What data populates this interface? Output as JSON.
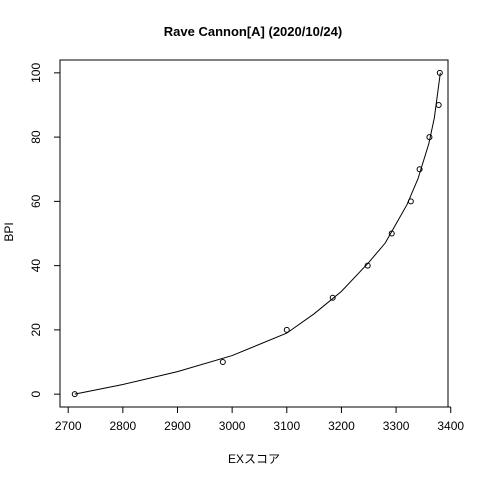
{
  "chart_data": {
    "type": "scatter",
    "title": "Rave Cannon[A] (2020/10/24)",
    "xlabel": "EXスコア",
    "ylabel": "BPI",
    "xlim": [
      2685,
      3395
    ],
    "ylim": [
      -4,
      104
    ],
    "x_ticks": [
      2700,
      2800,
      2900,
      3000,
      3100,
      3200,
      3300,
      3400
    ],
    "y_ticks": [
      0,
      20,
      40,
      60,
      80,
      100
    ],
    "grid": false,
    "legend": "none",
    "point_style": "open-circle",
    "points": [
      {
        "x": 2712,
        "y": 0
      },
      {
        "x": 2983,
        "y": 10
      },
      {
        "x": 3100,
        "y": 20
      },
      {
        "x": 3184,
        "y": 30
      },
      {
        "x": 3248,
        "y": 40
      },
      {
        "x": 3292,
        "y": 50
      },
      {
        "x": 3327,
        "y": 60
      },
      {
        "x": 3343,
        "y": 70
      },
      {
        "x": 3361,
        "y": 80
      },
      {
        "x": 3378,
        "y": 90
      },
      {
        "x": 3380,
        "y": 100
      }
    ],
    "fit_curve": {
      "x": [
        2712,
        2800,
        2900,
        3000,
        3100,
        3150,
        3200,
        3250,
        3280,
        3300,
        3320,
        3340,
        3360,
        3370,
        3381
      ],
      "y": [
        0,
        3,
        7,
        12,
        19,
        25,
        32,
        41,
        47,
        53,
        59,
        67,
        78,
        86,
        100
      ]
    },
    "colors": {
      "line": "#000000",
      "points": "#000000",
      "background": "#ffffff"
    }
  }
}
